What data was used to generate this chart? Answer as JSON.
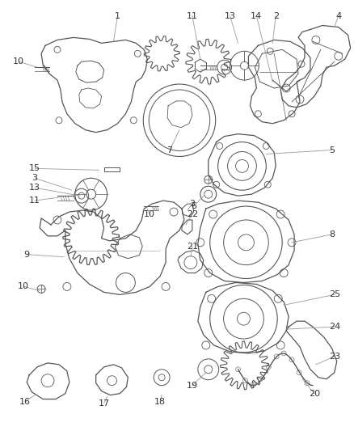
{
  "background_color": "#ffffff",
  "fig_width": 4.38,
  "fig_height": 5.33,
  "dpi": 100,
  "line_color": "#555555",
  "label_fontsize": 8,
  "label_color": "#444444",
  "line_leader_color": "#888888"
}
